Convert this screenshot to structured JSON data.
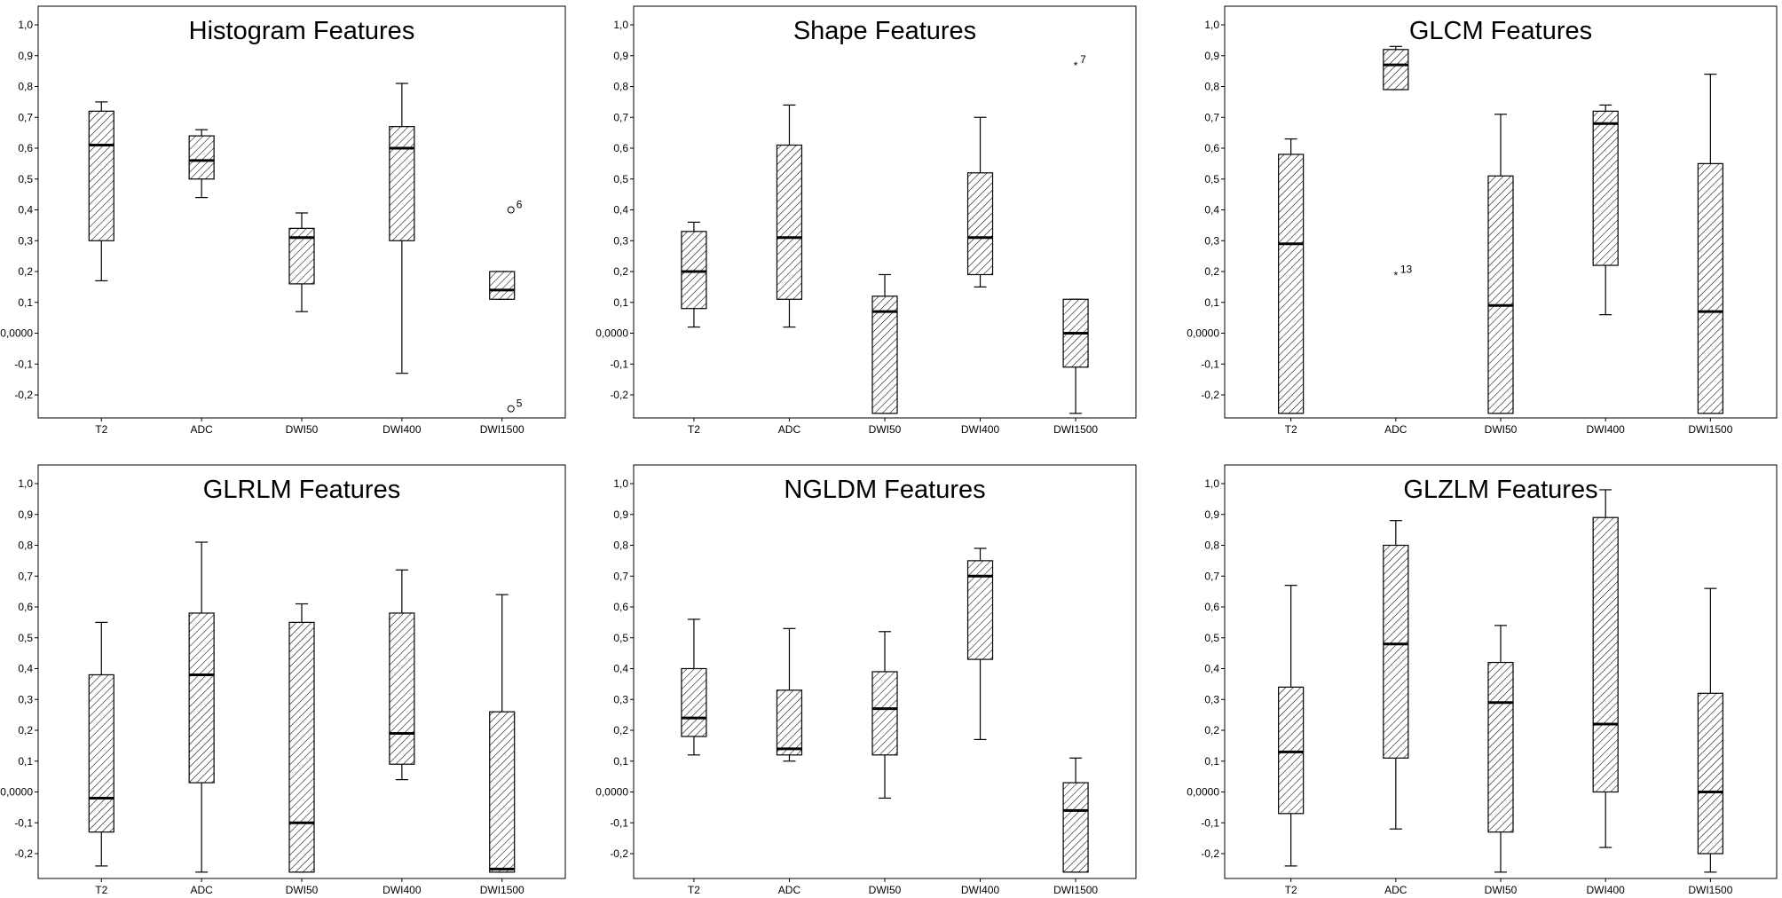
{
  "chart_data": [
    {
      "type": "boxplot",
      "title": "Histogram Features",
      "categories": [
        "T2",
        "ADC",
        "DWI50",
        "DWI400",
        "DWI1500"
      ],
      "ylim": [
        -0.26,
        1.04
      ],
      "yticks": [
        "-0,2",
        "-0,1",
        "0,0000",
        "0,1",
        "0,2",
        "0,3",
        "0,4",
        "0,5",
        "0,6",
        "0,7",
        "0,8",
        "0,9",
        "1,0"
      ],
      "boxes": [
        {
          "min": 0.17,
          "q1": 0.3,
          "median": 0.61,
          "q3": 0.72,
          "max": 0.75
        },
        {
          "min": 0.44,
          "q1": 0.5,
          "median": 0.56,
          "q3": 0.64,
          "max": 0.66
        },
        {
          "min": 0.07,
          "q1": 0.16,
          "median": 0.31,
          "q3": 0.34,
          "max": 0.39
        },
        {
          "min": -0.13,
          "q1": 0.3,
          "median": 0.6,
          "q3": 0.67,
          "max": 0.81
        },
        {
          "min": 0.11,
          "q1": 0.11,
          "median": 0.14,
          "q3": 0.2,
          "max": 0.2
        }
      ],
      "outliers": [
        {
          "category": 4,
          "value": 0.4,
          "marker": "circle",
          "label": "6"
        },
        {
          "category": 4,
          "value": -0.245,
          "marker": "circle",
          "label": "5"
        }
      ]
    },
    {
      "type": "boxplot",
      "title": "Shape Features",
      "categories": [
        "T2",
        "ADC",
        "DWI50",
        "DWI400",
        "DWI1500"
      ],
      "ylim": [
        -0.26,
        1.04
      ],
      "yticks": [
        "-0,2",
        "-0,1",
        "0,0000",
        "0,1",
        "0,2",
        "0,3",
        "0,4",
        "0,5",
        "0,6",
        "0,7",
        "0,8",
        "0,9",
        "1,0"
      ],
      "boxes": [
        {
          "min": 0.02,
          "q1": 0.08,
          "median": 0.2,
          "q3": 0.33,
          "max": 0.36
        },
        {
          "min": 0.02,
          "q1": 0.11,
          "median": 0.31,
          "q3": 0.61,
          "max": 0.74
        },
        {
          "min": -0.26,
          "q1": -0.26,
          "median": 0.07,
          "q3": 0.12,
          "max": 0.19
        },
        {
          "min": 0.15,
          "q1": 0.19,
          "median": 0.31,
          "q3": 0.52,
          "max": 0.7
        },
        {
          "min": -0.26,
          "q1": -0.11,
          "median": 0.0,
          "q3": 0.11,
          "max": 0.11
        }
      ],
      "outliers": [
        {
          "category": 4,
          "value": 0.87,
          "marker": "star",
          "label": "7"
        }
      ]
    },
    {
      "type": "boxplot",
      "title": "GLCM Features",
      "categories": [
        "T2",
        "ADC",
        "DWI50",
        "DWI400",
        "DWI1500"
      ],
      "ylim": [
        -0.26,
        1.04
      ],
      "yticks": [
        "-0,2",
        "-0,1",
        "0,0000",
        "0,1",
        "0,2",
        "0,3",
        "0,4",
        "0,5",
        "0,6",
        "0,7",
        "0,8",
        "0,9",
        "1,0"
      ],
      "boxes": [
        {
          "min": -0.26,
          "q1": -0.26,
          "median": 0.29,
          "q3": 0.58,
          "max": 0.63
        },
        {
          "min": 0.79,
          "q1": 0.79,
          "median": 0.87,
          "q3": 0.92,
          "max": 0.93
        },
        {
          "min": -0.26,
          "q1": -0.26,
          "median": 0.09,
          "q3": 0.51,
          "max": 0.71
        },
        {
          "min": 0.06,
          "q1": 0.22,
          "median": 0.68,
          "q3": 0.72,
          "max": 0.74
        },
        {
          "min": -0.26,
          "q1": -0.26,
          "median": 0.07,
          "q3": 0.55,
          "max": 0.84
        }
      ],
      "outliers": [
        {
          "category": 1,
          "value": 0.19,
          "marker": "star",
          "label": "13"
        }
      ]
    },
    {
      "type": "boxplot",
      "title": "GLRLM Features",
      "categories": [
        "T2",
        "ADC",
        "DWI50",
        "DWI400",
        "DWI1500"
      ],
      "ylim": [
        -0.26,
        1.04
      ],
      "yticks": [
        "-0,2",
        "-0,1",
        "0,0000",
        "0,1",
        "0,2",
        "0,3",
        "0,4",
        "0,5",
        "0,6",
        "0,7",
        "0,8",
        "0,9",
        "1,0"
      ],
      "boxes": [
        {
          "min": -0.24,
          "q1": -0.13,
          "median": -0.02,
          "q3": 0.38,
          "max": 0.55
        },
        {
          "min": -0.26,
          "q1": 0.03,
          "median": 0.38,
          "q3": 0.58,
          "max": 0.81
        },
        {
          "min": -0.26,
          "q1": -0.26,
          "median": -0.1,
          "q3": 0.55,
          "max": 0.61
        },
        {
          "min": 0.04,
          "q1": 0.09,
          "median": 0.19,
          "q3": 0.58,
          "max": 0.72
        },
        {
          "min": -0.26,
          "q1": -0.26,
          "median": -0.25,
          "q3": 0.26,
          "max": 0.64
        }
      ],
      "outliers": []
    },
    {
      "type": "boxplot",
      "title": "NGLDM Features",
      "categories": [
        "T2",
        "ADC",
        "DWI50",
        "DWI400",
        "DWI1500"
      ],
      "ylim": [
        -0.26,
        1.04
      ],
      "yticks": [
        "-0,2",
        "-0,1",
        "0,0000",
        "0,1",
        "0,2",
        "0,3",
        "0,4",
        "0,5",
        "0,6",
        "0,7",
        "0,8",
        "0,9",
        "1,0"
      ],
      "boxes": [
        {
          "min": 0.12,
          "q1": 0.18,
          "median": 0.24,
          "q3": 0.4,
          "max": 0.56
        },
        {
          "min": 0.1,
          "q1": 0.12,
          "median": 0.14,
          "q3": 0.33,
          "max": 0.53
        },
        {
          "min": -0.02,
          "q1": 0.12,
          "median": 0.27,
          "q3": 0.39,
          "max": 0.52
        },
        {
          "min": 0.17,
          "q1": 0.43,
          "median": 0.7,
          "q3": 0.75,
          "max": 0.79
        },
        {
          "min": -0.26,
          "q1": -0.26,
          "median": -0.06,
          "q3": 0.03,
          "max": 0.11
        }
      ],
      "outliers": []
    },
    {
      "type": "boxplot",
      "title": "GLZLM Features",
      "categories": [
        "T2",
        "ADC",
        "DWI50",
        "DWI400",
        "DWI1500"
      ],
      "ylim": [
        -0.26,
        1.04
      ],
      "yticks": [
        "-0,2",
        "-0,1",
        "0,0000",
        "0,1",
        "0,2",
        "0,3",
        "0,4",
        "0,5",
        "0,6",
        "0,7",
        "0,8",
        "0,9",
        "1,0"
      ],
      "boxes": [
        {
          "min": -0.24,
          "q1": -0.07,
          "median": 0.13,
          "q3": 0.34,
          "max": 0.67
        },
        {
          "min": -0.12,
          "q1": 0.11,
          "median": 0.48,
          "q3": 0.8,
          "max": 0.88
        },
        {
          "min": -0.26,
          "q1": -0.13,
          "median": 0.29,
          "q3": 0.42,
          "max": 0.54
        },
        {
          "min": -0.18,
          "q1": 0.0,
          "median": 0.22,
          "q3": 0.89,
          "max": 0.98
        },
        {
          "min": -0.26,
          "q1": -0.2,
          "median": 0.0,
          "q3": 0.32,
          "max": 0.66
        }
      ],
      "outliers": []
    }
  ],
  "style": {
    "line_color": "#000000",
    "box_fill": "#ffffff",
    "hatch_color": "#000000",
    "background": "#ffffff"
  }
}
